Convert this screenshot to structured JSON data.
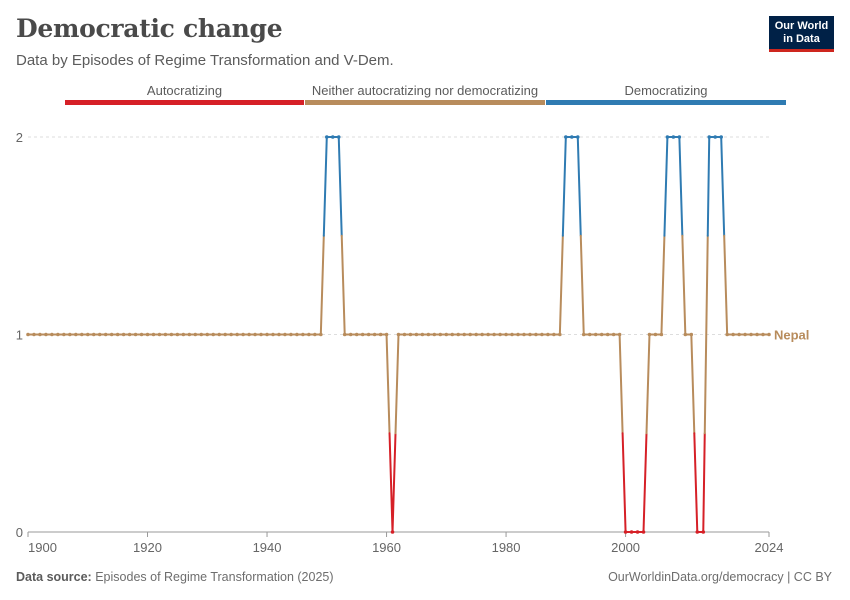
{
  "header": {
    "title": "Democratic change",
    "subtitle": "Data by Episodes of Regime Transformation and V-Dem."
  },
  "logo": {
    "line1": "Our World",
    "line2": "in Data"
  },
  "footer": {
    "source_label": "Data source:",
    "source_text": "Episodes of Regime Transformation (2025)",
    "right_text": "OurWorldinData.org/democracy | CC BY"
  },
  "chart_data": {
    "type": "line",
    "legend": [
      {
        "label": "Autocratizing",
        "color": "#d62027"
      },
      {
        "label": "Neither autocratizing nor democratizing",
        "color": "#b88c5c"
      },
      {
        "label": "Democratizing",
        "color": "#2f7bb2"
      }
    ],
    "x_ticks": [
      "1900",
      "1920",
      "1940",
      "1960",
      "1980",
      "2000",
      "2024"
    ],
    "y_ticks": [
      "0",
      "1",
      "2"
    ],
    "xlim": [
      1900,
      2024
    ],
    "ylim": [
      0,
      2
    ],
    "series": [
      {
        "name": "Nepal",
        "changes": [
          {
            "year": 1950,
            "value": 2
          },
          {
            "year": 1953,
            "value": 1
          },
          {
            "year": 1961,
            "value": 0
          },
          {
            "year": 1962,
            "value": 1
          },
          {
            "year": 1990,
            "value": 2
          },
          {
            "year": 1993,
            "value": 1
          },
          {
            "year": 2000,
            "value": 0
          },
          {
            "year": 2004,
            "value": 1
          },
          {
            "year": 2007,
            "value": 2
          },
          {
            "year": 2010,
            "value": 1
          },
          {
            "year": 2012,
            "value": 0
          },
          {
            "year": 2014,
            "value": 2
          },
          {
            "year": 2017,
            "value": 1
          }
        ],
        "start_value": 1
      }
    ],
    "colors": {
      "autocratizing": "#d62027",
      "neutral": "#b88c5c",
      "democratizing": "#2f7bb2",
      "grid": "#dddddd",
      "axis": "#666666"
    }
  }
}
